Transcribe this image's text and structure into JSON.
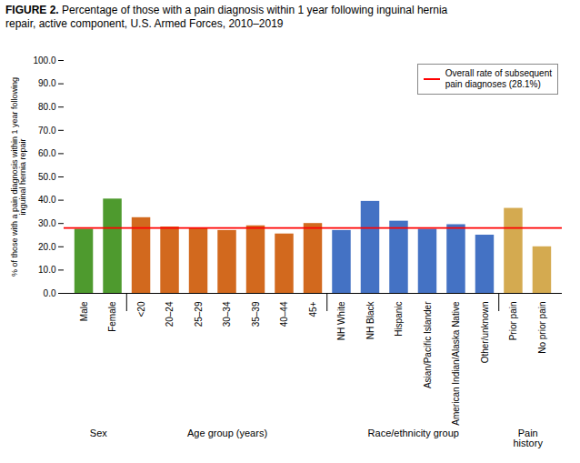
{
  "chart_data": {
    "type": "bar",
    "title": "FIGURE 2.",
    "subtitle": "Percentage of those with a pain diagnosis within 1 year following inguinal hernia\nrepair, active component, U.S. Armed Forces, 2010–2019",
    "categories": [
      "Male",
      "Female",
      "<20",
      "20–24",
      "25–29",
      "30–34",
      "35–39",
      "40–44",
      "45+",
      "NH White",
      "NH Black",
      "Hispanic",
      "Asian/Pacific Islander",
      "American Indian/Alaska Native",
      "Other/unknown",
      "Prior pain",
      "No prior pain"
    ],
    "values": [
      27.5,
      40.5,
      32.5,
      28.5,
      28.0,
      27.0,
      29.0,
      25.5,
      30.0,
      27.0,
      39.5,
      31.0,
      27.5,
      29.5,
      25.0,
      36.5,
      20.0
    ],
    "colors": [
      "#4e9a2e",
      "#4e9a2e",
      "#d2691e",
      "#d2691e",
      "#d2691e",
      "#d2691e",
      "#d2691e",
      "#d2691e",
      "#d2691e",
      "#4472c4",
      "#4472c4",
      "#4472c4",
      "#4472c4",
      "#4472c4",
      "#4472c4",
      "#d4aa50",
      "#d4aa50"
    ],
    "ylabel": "% of those with a pain diagnosis within 1 year following\ninguinal hernia repair",
    "ylim": [
      0,
      100
    ],
    "yticks": [
      {
        "value": 0,
        "label": "0.0"
      },
      {
        "value": 10,
        "label": "10.0"
      },
      {
        "value": 20,
        "label": "20.0"
      },
      {
        "value": 30,
        "label": "30.0"
      },
      {
        "value": 40,
        "label": "40.0"
      },
      {
        "value": 50,
        "label": "50.0"
      },
      {
        "value": 60,
        "label": "60.0"
      },
      {
        "value": 70,
        "label": "70.0"
      },
      {
        "value": 80,
        "label": "80.0"
      },
      {
        "value": 90,
        "label": "90.0"
      },
      {
        "value": 100,
        "label": "100.0"
      }
    ],
    "groups": [
      {
        "label": "Sex",
        "categories": [
          "Male",
          "Female"
        ]
      },
      {
        "label": "Age group (years)",
        "categories": [
          "<20",
          "20–24",
          "25–29",
          "30–34",
          "35–39",
          "40–44",
          "45+"
        ]
      },
      {
        "label": "Race/ethnicity group",
        "categories": [
          "NH White",
          "NH Black",
          "Hispanic",
          "Asian/Pacific Islander",
          "American Indian/Alaska Native",
          "Other/unknown"
        ]
      },
      {
        "label": "Pain\nhistory",
        "categories": [
          "Prior pain",
          "No prior pain"
        ]
      }
    ],
    "reference_lines": [
      {
        "name": "Overall rate of subsequent\npain diagnoses (28.1%)",
        "value": 28.1,
        "color": "red"
      }
    ],
    "legend": "upper right",
    "grid": false
  }
}
